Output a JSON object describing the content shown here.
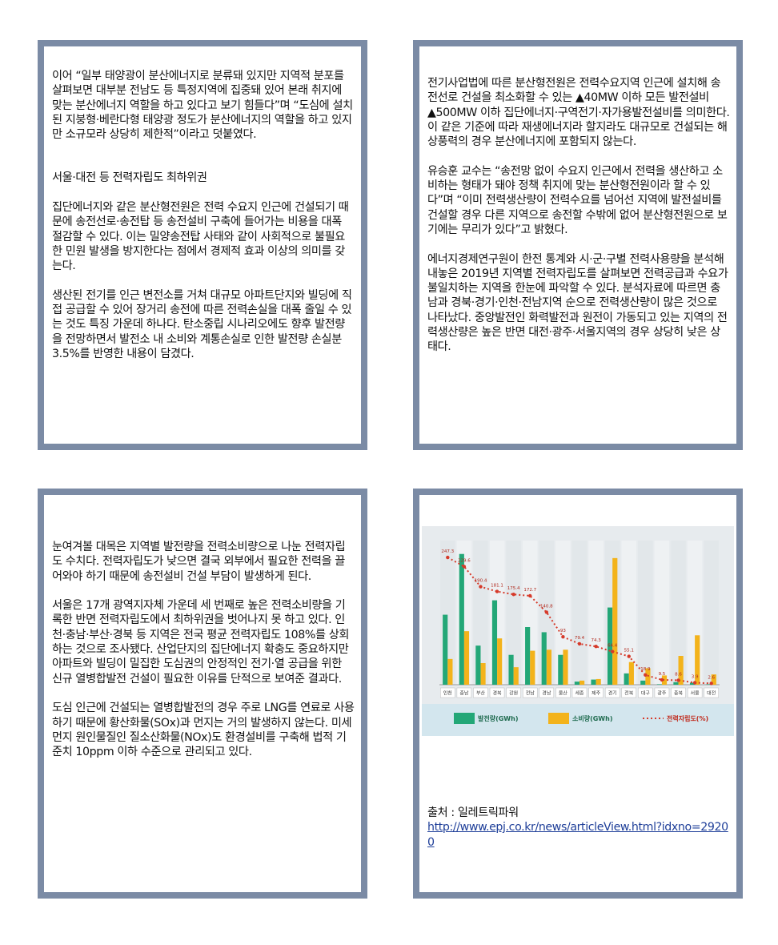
{
  "panels": [
    {
      "paragraphs": [
        "이어 “일부 태양광이 분산에너지로 분류돼 있지만 지역적 분포를 살펴보면 대부분 전남도 등 특정지역에 집중돼 있어 본래 취지에 맞는 분산에너지 역할을 하고 있다고 보기 힘들다”며 “도심에 설치된 지붕형·베란다형 태양광 정도가 분산에너지의 역할을 하고 있지만 소규모라 상당히 제한적”이라고 덧붙였다.",
        "서울·대전 등 전력자립도 최하위권",
        "집단에너지와 같은 분산형전원은 전력 수요지 인근에 건설되기 때문에 송전선로·송전탑 등 송전설비 구축에 들어가는 비용을 대폭 절감할 수 있다. 이는 밀양송전탑 사태와 같이 사회적으로 불필요한 민원 발생을 방지한다는 점에서 경제적 효과 이상의 의미를 갖는다.",
        "생산된 전기를 인근 변전소를 거쳐 대규모 아파트단지와 빌딩에 직접 공급할 수 있어 장거리 송전에 따른 전력손실을 대폭 줄일 수 있는 것도 특징 가운데 하나다. 탄소중립 시나리오에도 향후 발전량을 전망하면서 발전소 내 소비와 계통손실로 인한 발전량 손실분 3.5%를 반영한 내용이 담겼다."
      ]
    },
    {
      "paragraphs": [
        "전기사업법에 따른 분산형전원은 전력수요지역 인근에 설치해 송전선로 건설을 최소화할 수 있는 ▲40MW 이하 모든 발전설비 ▲500MW 이하 집단에너지·구역전기·자가용발전설비를 의미한다. 이 같은 기준에 따라 재생에너지라 할지라도 대규모로 건설되는 해상풍력의 경우 분산에너지에 포함되지 않는다.",
        "유승훈 교수는 “송전망 없이 수요지 인근에서 전력을 생산하고 소비하는 형태가 돼야 정책 취지에 맞는 분산형전원이라 할 수 있다”며 “이미 전력생산량이 전력수요를 넘어선 지역에 발전설비를 건설할 경우 다른 지역으로 송전할 수밖에 없어 분산형전원으로 보기에는 무리가 있다”고 밝혔다.",
        "에너지경제연구원이 한전 통계와 시·군·구별 전력사용량을 분석해 내놓은 2019년 지역별 전력자립도를 살펴보면 전력공급과 수요가 불일치하는 지역을 한눈에 파악할 수 있다. 분석자료에 따르면 충남과 경북·경기·인천·전남지역 순으로 전력생산량이 많은 것으로 나타났다. 중앙발전인 화력발전과 원전이 가동되고 있는 지역의 전력생산량은 높은 반면 대전·광주·서울지역의 경우 상당히 낮은 상태다."
      ]
    },
    {
      "paragraphs": [
        "눈여겨볼 대목은 지역별 발전량을 전력소비량으로 나눈 전력자립도 수치다. 전력자립도가 낮으면 결국 외부에서 필요한 전력을 끌어와야 하기 때문에 송전설비 건설 부담이 발생하게 된다.",
        "서울은 17개 광역지자체 가운데 세 번째로 높은 전력소비량을 기록한 반면 전력자립도에서 최하위권을 벗어나지 못 하고 있다. 인천·충남·부산·경북 등 지역은 전국 평균 전력자립도 108%를 상회하는 것으로 조사됐다. 산업단지의 집단에너지 확충도 중요하지만 아파트와 빌딩이 밀집한 도심권의 안정적인 전기·열 공급을 위한 신규 열병합발전 건설이 필요한 이유를 단적으로 보여준 결과다.",
        "도심 인근에 건설되는 열병합발전의 경우 주로 LNG를 연료로 사용하기 때문에 황산화물(SOx)과 먼지는 거의 발생하지 않는다. 미세먼지 원인물질인 질소산화물(NOx)도 환경설비를 구축해 법적 기준치 10ppm 이하 수준으로 관리되고 있다."
      ]
    },
    {
      "source": "출처 : 일레트릭파워",
      "url": "http://www.epj.co.kr/news/articleView.html?idxno=29200"
    }
  ],
  "chart_data": {
    "type": "bar",
    "categories": [
      "인천",
      "충남",
      "부산",
      "경북",
      "강원",
      "전남",
      "경남",
      "울산",
      "세종",
      "제주",
      "경기",
      "전북",
      "대구",
      "광주",
      "충북",
      "서울",
      "대전"
    ],
    "series": [
      {
        "name": "발전량(GWh)",
        "color": "#23a777",
        "values": [
          68000,
          127000,
          38000,
          82000,
          29000,
          56000,
          51000,
          29000,
          3000,
          5000,
          75000,
          11000,
          4000,
          500,
          2500,
          2000,
          500
        ]
      },
      {
        "name": "소비량(GWh)",
        "color": "#f3b31b",
        "values": [
          25000,
          52000,
          21000,
          45000,
          17000,
          33000,
          34000,
          34000,
          4000,
          5500,
          123000,
          22000,
          16000,
          9000,
          28000,
          48000,
          10000
        ]
      },
      {
        "name": "전력자립도(%)",
        "color": "#d63a2a",
        "axis": "y2",
        "type": "line",
        "values": [
          247.3,
          229.6,
          190.4,
          181.1,
          175.4,
          172.7,
          140.8,
          93.0,
          79.4,
          74.3,
          64.4,
          55.1,
          18.9,
          9.5,
          8.6,
          3.9,
          2.6
        ]
      }
    ],
    "ylim": [
      0,
      140000
    ],
    "y2lim": [
      0,
      280
    ]
  }
}
